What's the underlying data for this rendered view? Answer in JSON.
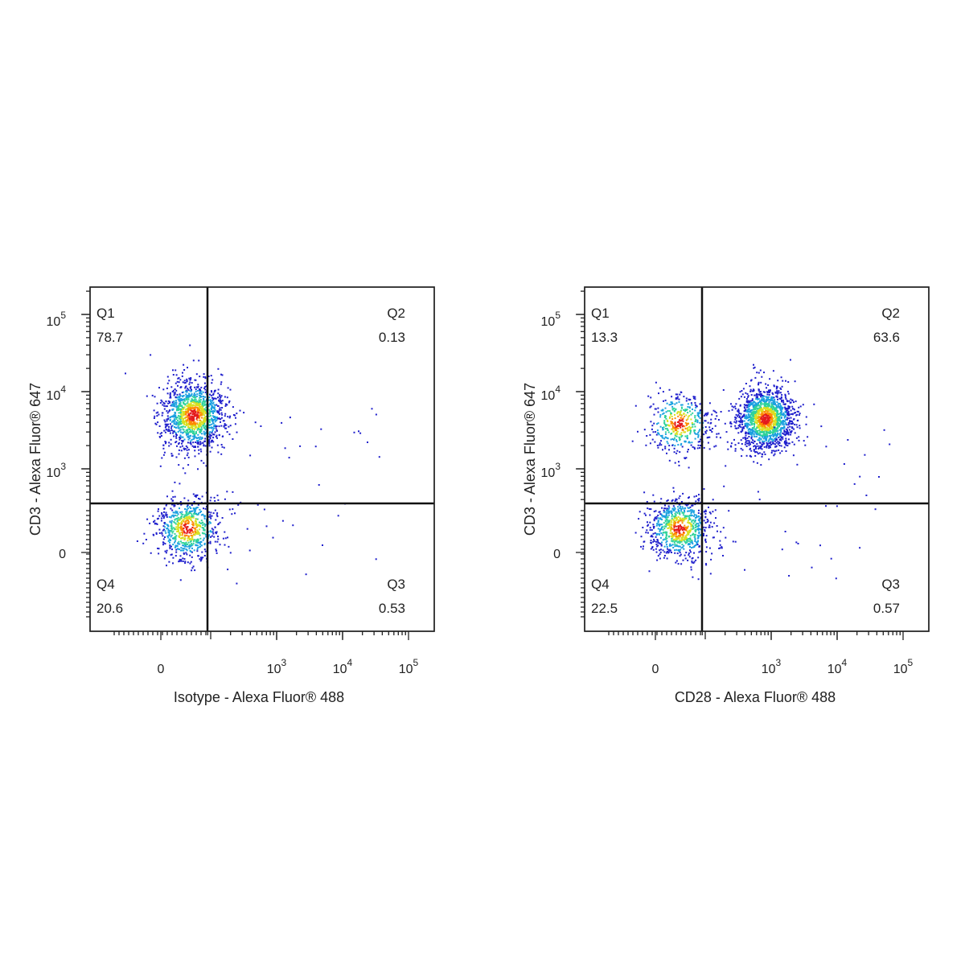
{
  "chart_data": [
    {
      "type": "scatter",
      "xlabel": "Isotype - Alexa Fluor® 488",
      "ylabel": "CD3 - Alexa Fluor® 647",
      "x_scale": "biexponential",
      "y_scale": "biexponential",
      "x_ticks": [
        {
          "label": "0",
          "sup": "",
          "value": 0
        },
        {
          "label": "10",
          "sup": "3",
          "value": 1000
        },
        {
          "label": "10",
          "sup": "4",
          "value": 10000
        },
        {
          "label": "10",
          "sup": "5",
          "value": 100000
        }
      ],
      "y_ticks": [
        {
          "label": "10",
          "sup": "5",
          "value": 100000
        },
        {
          "label": "10",
          "sup": "4",
          "value": 10000
        },
        {
          "label": "10",
          "sup": "3",
          "value": 1000
        },
        {
          "label": "0",
          "sup": "",
          "value": 0
        }
      ],
      "quadrants": [
        {
          "name": "Q1",
          "value": "78.7",
          "position": "top-left"
        },
        {
          "name": "Q2",
          "value": "0.13",
          "position": "top-right"
        },
        {
          "name": "Q3",
          "value": "0.53",
          "position": "bottom-right"
        },
        {
          "name": "Q4",
          "value": "20.6",
          "position": "bottom-left"
        }
      ],
      "gate": {
        "x": 400,
        "y": 400
      },
      "populations": [
        {
          "x": 60,
          "y": 5000,
          "count": 1300,
          "spread_x": 0.9,
          "spread_y": 0.9
        },
        {
          "x": 30,
          "y": 20,
          "count": 700,
          "spread_x": 0.9,
          "spread_y": 0.8
        }
      ],
      "density_colors": [
        "#1f1fcc",
        "#1aa0e0",
        "#2ed39a",
        "#d8e020",
        "#ff8a00",
        "#e41a1c"
      ]
    },
    {
      "type": "scatter",
      "xlabel": "CD28 - Alexa Fluor® 488",
      "ylabel": "CD3 - Alexa Fluor® 647",
      "x_scale": "biexponential",
      "y_scale": "biexponential",
      "x_ticks": [
        {
          "label": "0",
          "sup": "",
          "value": 0
        },
        {
          "label": "10",
          "sup": "3",
          "value": 1000
        },
        {
          "label": "10",
          "sup": "4",
          "value": 10000
        },
        {
          "label": "10",
          "sup": "5",
          "value": 100000
        }
      ],
      "y_ticks": [
        {
          "label": "10",
          "sup": "5",
          "value": 100000
        },
        {
          "label": "10",
          "sup": "4",
          "value": 10000
        },
        {
          "label": "10",
          "sup": "3",
          "value": 1000
        },
        {
          "label": "0",
          "sup": "",
          "value": 0
        }
      ],
      "quadrants": [
        {
          "name": "Q1",
          "value": "13.3",
          "position": "top-left"
        },
        {
          "name": "Q2",
          "value": "63.6",
          "position": "top-right"
        },
        {
          "name": "Q3",
          "value": "0.57",
          "position": "bottom-right"
        },
        {
          "name": "Q4",
          "value": "22.5",
          "position": "bottom-left"
        }
      ],
      "gate": {
        "x": 400,
        "y": 400
      },
      "populations": [
        {
          "x": 20,
          "y": 4000,
          "count": 450,
          "spread_x": 0.9,
          "spread_y": 0.8
        },
        {
          "x": 800,
          "y": 4500,
          "count": 1500,
          "spread_x": 0.8,
          "spread_y": 0.8
        },
        {
          "x": 20,
          "y": 20,
          "count": 800,
          "spread_x": 0.9,
          "spread_y": 0.8
        }
      ],
      "density_colors": [
        "#1f1fcc",
        "#1aa0e0",
        "#2ed39a",
        "#d8e020",
        "#ff8a00",
        "#e41a1c"
      ]
    }
  ]
}
